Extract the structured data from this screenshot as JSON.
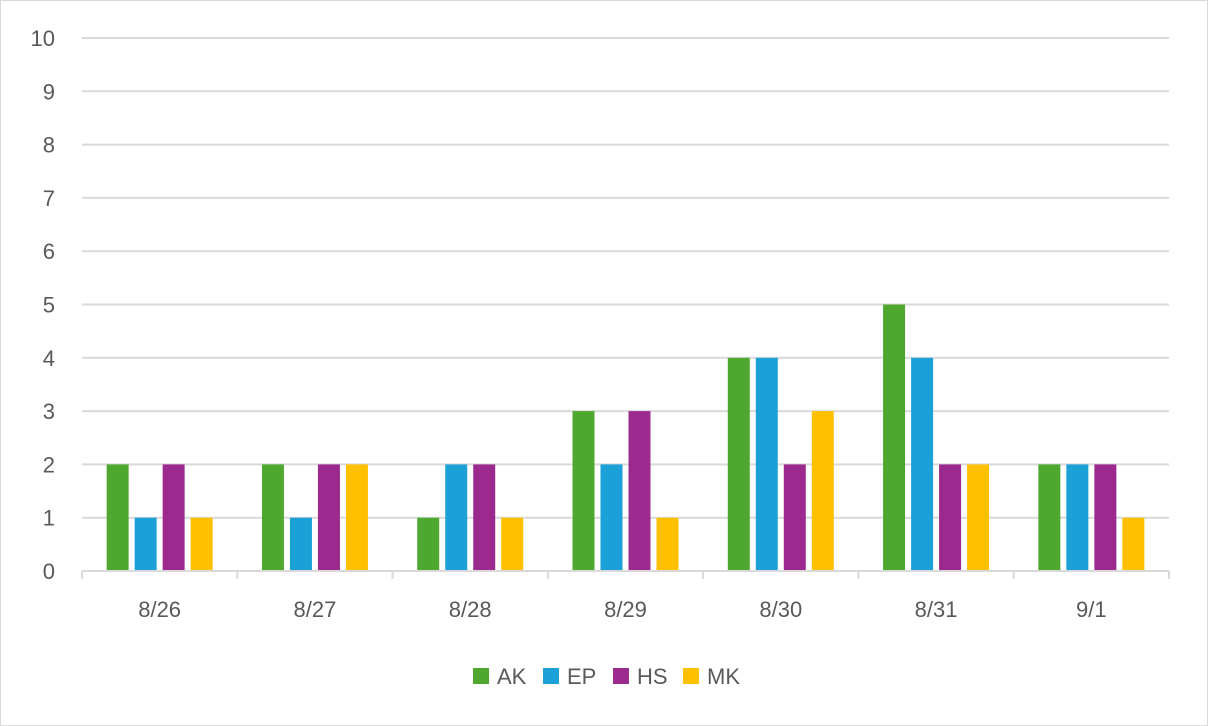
{
  "chart_data": {
    "type": "bar",
    "title": "",
    "xlabel": "",
    "ylabel": "",
    "categories": [
      "8/26",
      "8/27",
      "8/28",
      "8/29",
      "8/30",
      "8/31",
      "9/1"
    ],
    "ylim": [
      0,
      10
    ],
    "yticks": [
      "0",
      "1",
      "2",
      "3",
      "4",
      "5",
      "6",
      "7",
      "8",
      "9",
      "10"
    ],
    "grid": true,
    "legend_position": "bottom",
    "series": [
      {
        "name": "AK",
        "color": "#4EA72E",
        "values": [
          2,
          2,
          1,
          3,
          4,
          5,
          2
        ]
      },
      {
        "name": "EP",
        "color": "#1BA1D8",
        "values": [
          1,
          1,
          2,
          2,
          4,
          4,
          2
        ]
      },
      {
        "name": "HS",
        "color": "#9C2A8E",
        "values": [
          2,
          2,
          2,
          3,
          2,
          2,
          2
        ]
      },
      {
        "name": "MK",
        "color": "#FFC000",
        "values": [
          1,
          2,
          1,
          1,
          3,
          2,
          1
        ]
      }
    ]
  }
}
